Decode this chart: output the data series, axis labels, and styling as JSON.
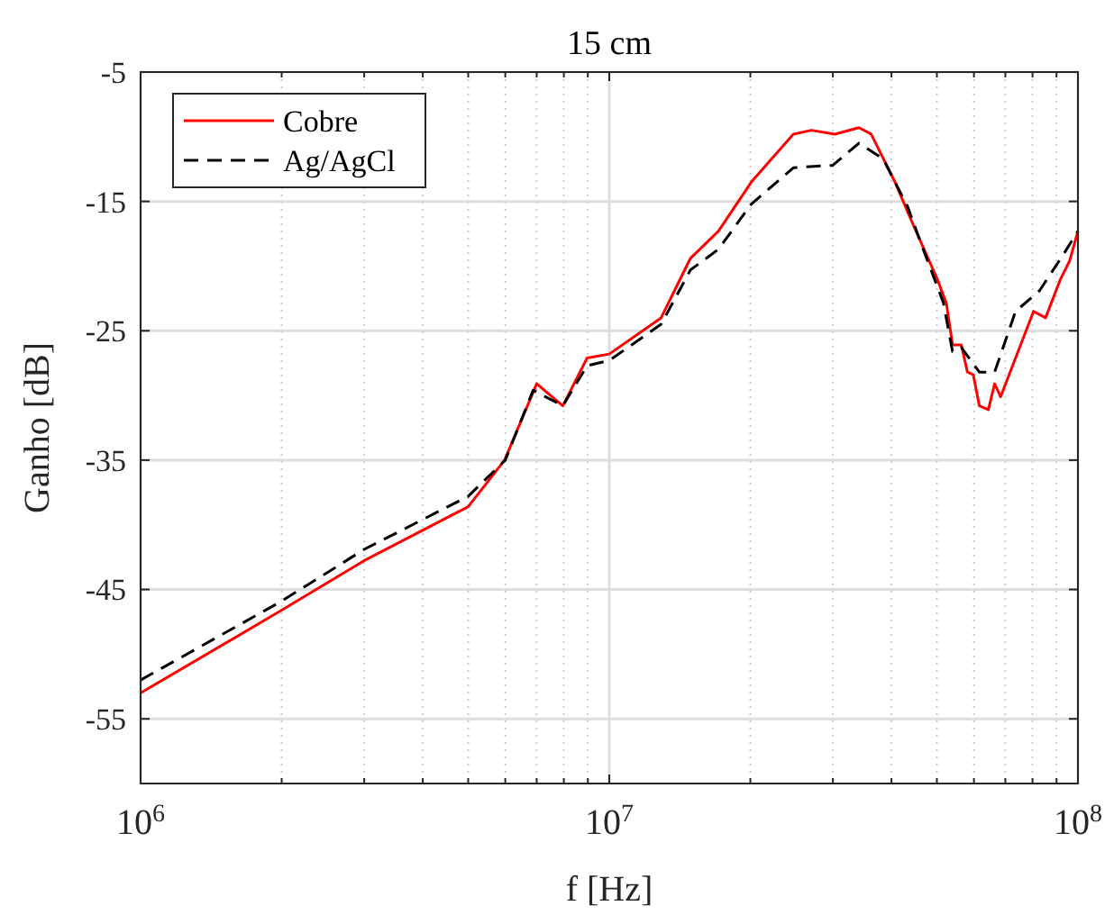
{
  "chart_data": {
    "type": "line",
    "title": "15 cm",
    "xlabel": "f [Hz]",
    "ylabel": "Ganho [dB]",
    "log": "x",
    "grid": true,
    "legend": "top left",
    "xlim": [
      1000000,
      100000000
    ],
    "xticks": [
      {
        "value": 1000000,
        "label": "10$^{6}$"
      },
      {
        "value": 10000000,
        "label": "10$^{7}$"
      },
      {
        "value": 100000000,
        "label": "10$^{8}$"
      }
    ],
    "ylim": [
      -60,
      -5
    ],
    "yticks": [
      -55,
      -45,
      -35,
      -25,
      -15,
      -5
    ],
    "series": [
      {
        "name": "Cobre",
        "color": "#ff0000",
        "line_style": "solid",
        "x": [
          1000000,
          2000000,
          2990000,
          5000000,
          5980000,
          7000000,
          7960000,
          8970000,
          10000000,
          12900000,
          14900000,
          17100000,
          20100000,
          24700000,
          27000000,
          30300000,
          34100000,
          36200000,
          40700000,
          44500000,
          50100000,
          52400000,
          54000000,
          56400000,
          58100000,
          59800000,
          61600000,
          64400000,
          66400000,
          68400000,
          80400000,
          85300000,
          91800000,
          96000000,
          100000000
        ],
        "values": [
          -53.0,
          -46.6,
          -42.8,
          -38.6,
          -35.0,
          -29.1,
          -30.8,
          -27.1,
          -26.8,
          -24.0,
          -19.4,
          -17.3,
          -13.5,
          -9.8,
          -9.5,
          -9.8,
          -9.3,
          -9.8,
          -13.5,
          -16.8,
          -21.0,
          -22.9,
          -26.1,
          -26.1,
          -28.2,
          -28.4,
          -30.8,
          -31.1,
          -29.1,
          -30.1,
          -23.5,
          -24.0,
          -21.0,
          -19.6,
          -17.3
        ]
      },
      {
        "name": "Ag/AgCl",
        "color": "#000000",
        "line_style": "dashed",
        "x": [
          1000000,
          2000000,
          3000000,
          5000000,
          6000000,
          6880000,
          7960000,
          8970000,
          10000000,
          12900000,
          14900000,
          17100000,
          20100000,
          24700000,
          30000000,
          34100000,
          38400000,
          43300000,
          47200000,
          51600000,
          54000000,
          56400000,
          61600000,
          66400000,
          73600000,
          82800000,
          93100000,
          100000000
        ],
        "values": [
          -52.0,
          -45.9,
          -41.9,
          -37.8,
          -35.0,
          -29.6,
          -30.8,
          -27.7,
          -27.3,
          -24.5,
          -20.3,
          -18.7,
          -15.2,
          -12.4,
          -12.2,
          -10.5,
          -11.7,
          -15.4,
          -19.1,
          -22.8,
          -26.6,
          -26.3,
          -28.2,
          -28.2,
          -23.5,
          -21.9,
          -19.1,
          -17.3
        ]
      }
    ]
  }
}
